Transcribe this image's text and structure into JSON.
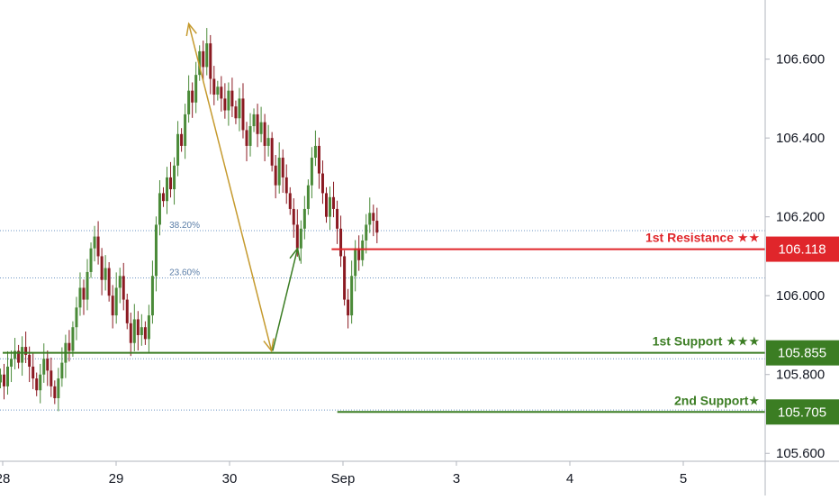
{
  "chart_data": {
    "type": "candlestick",
    "y_axis": {
      "range": [
        105.58,
        106.75
      ],
      "ticks": [
        "106.600",
        "106.400",
        "106.200",
        "106.000",
        "105.800",
        "105.600"
      ],
      "tick_values": [
        106.6,
        106.4,
        106.2,
        106.0,
        105.8,
        105.6
      ]
    },
    "x_axis": {
      "ticks": [
        "28",
        "29",
        "30",
        "Sep",
        "3",
        "4",
        "5"
      ],
      "tick_days": [
        0,
        1,
        2,
        3,
        4,
        5,
        6
      ],
      "range_days": [
        0,
        6.75
      ]
    },
    "colors": {
      "up": "#4a8a38",
      "down": "#8b1a22",
      "resistance": "#e0262b",
      "support": "#3b7d23",
      "swing_arrow": "#c59a2e",
      "projection_arrow": "#3b7d23",
      "fib": "#6c95c4"
    },
    "levels": [
      {
        "label": "1st Resistance ★★",
        "price": 106.118,
        "badge": "106.118",
        "kind": "resistance",
        "start_day": 2.9
      },
      {
        "label": "1st Support ★★★",
        "price": 105.855,
        "badge": "105.855",
        "kind": "support",
        "start_day": 0
      },
      {
        "label": "2nd Support★",
        "price": 105.705,
        "badge": "105.705",
        "kind": "support",
        "start_day": 2.95
      }
    ],
    "fib_levels": [
      {
        "label": "38.20%",
        "price": 106.165
      },
      {
        "label": "23.60%",
        "price": 106.045
      },
      {
        "label": "",
        "price": 105.84
      },
      {
        "label": "",
        "price": 105.71
      }
    ],
    "annotations": {
      "swing_arrow": {
        "from": [
          1.64,
          106.69
        ],
        "to": [
          2.37,
          105.86
        ]
      },
      "projection_arrow": {
        "from": [
          2.38,
          105.86
        ],
        "to": [
          2.6,
          106.12
        ]
      }
    },
    "close_values": [
      105.8,
      105.77,
      105.82,
      105.84,
      105.86,
      105.83,
      105.87,
      105.85,
      105.82,
      105.79,
      105.76,
      105.8,
      105.84,
      105.81,
      105.77,
      105.74,
      105.79,
      105.83,
      105.88,
      105.86,
      105.92,
      105.97,
      106.02,
      105.99,
      106.06,
      106.12,
      106.15,
      106.1,
      106.04,
      106.07,
      106.0,
      105.95,
      106.02,
      106.05,
      105.99,
      105.93,
      105.88,
      105.94,
      105.9,
      105.92,
      105.89,
      105.95,
      106.05,
      106.18,
      106.26,
      106.24,
      106.3,
      106.27,
      106.33,
      106.41,
      106.38,
      106.46,
      106.52,
      106.49,
      106.56,
      106.62,
      106.58,
      106.64,
      106.55,
      106.51,
      106.53,
      106.5,
      106.47,
      106.52,
      106.48,
      106.45,
      106.5,
      106.42,
      106.38,
      106.43,
      106.46,
      106.41,
      106.44,
      106.38,
      106.4,
      106.33,
      106.28,
      106.35,
      106.3,
      106.26,
      106.22,
      106.18,
      106.12,
      106.17,
      106.22,
      106.28,
      106.35,
      106.38,
      106.31,
      106.26,
      106.2,
      106.25,
      106.22,
      106.17,
      106.1,
      105.99,
      105.95,
      106.05,
      106.12,
      106.09,
      106.14,
      106.18,
      106.21,
      106.19,
      106.16
    ],
    "open_first": 105.78
  }
}
